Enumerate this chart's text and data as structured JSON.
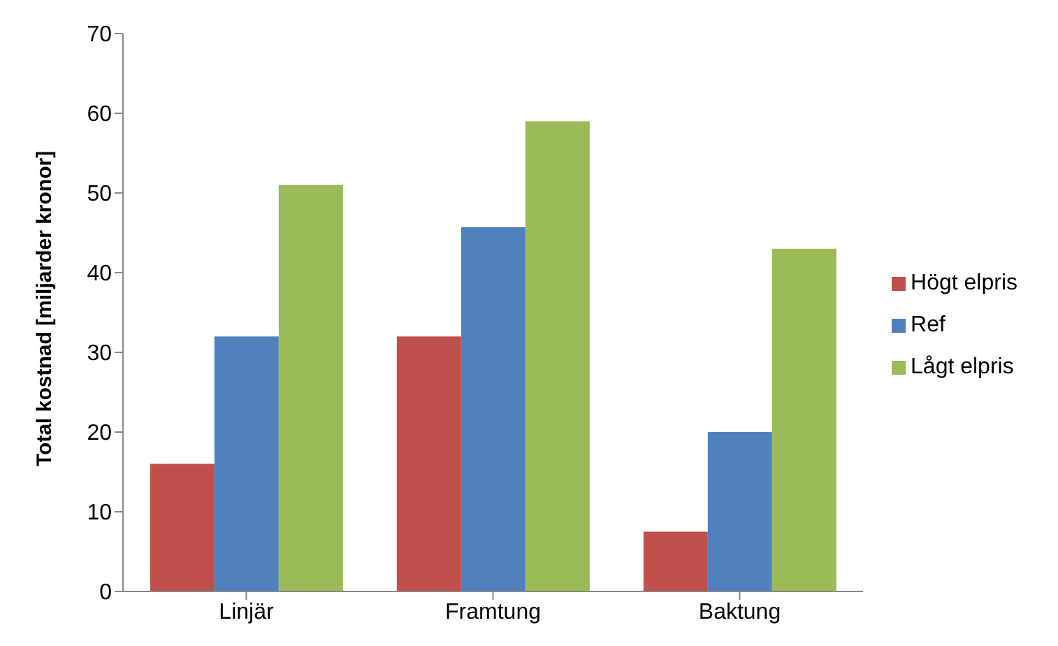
{
  "chart_data": {
    "type": "bar",
    "ylabel": "Total kostnad [miljarder kronor]",
    "categories": [
      "Linjär",
      "Framtung",
      "Baktung"
    ],
    "series": [
      {
        "name": "Högt elpris",
        "color": "#c0504d",
        "values": [
          16,
          32,
          7.5
        ]
      },
      {
        "name": "Ref",
        "color": "#4f81bd",
        "values": [
          32,
          45.7,
          20
        ]
      },
      {
        "name": "Lågt elpris",
        "color": "#9bbb59",
        "values": [
          51,
          59,
          43
        ]
      }
    ],
    "ylim": [
      0,
      70
    ],
    "yticks": [
      0,
      10,
      20,
      30,
      40,
      50,
      60,
      70
    ],
    "grid": false,
    "legend": "right"
  }
}
